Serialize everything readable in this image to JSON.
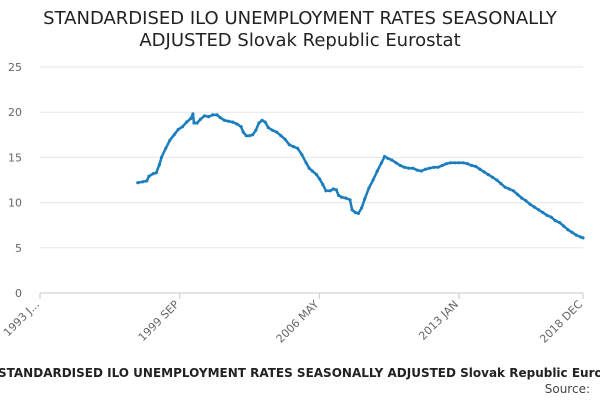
{
  "chart_data": {
    "type": "line",
    "title": "STANDARDISED ILO UNEMPLOYMENT RATES SEASONALLY ADJUSTED Slovak Republic Eurostat",
    "title_line1": "STANDARDISED ILO UNEMPLOYMENT RATES SEASONALLY",
    "title_line2": "ADJUSTED Slovak Republic Eurostat",
    "xlabel": "",
    "ylabel": "",
    "ylim": [
      0,
      25
    ],
    "yticks": [
      0,
      5,
      10,
      15,
      20,
      25
    ],
    "xlim": [
      1993.0,
      2018.92
    ],
    "xtick_values": [
      1993.0,
      1999.67,
      2006.33,
      2013.0,
      2018.92
    ],
    "xtick_labels": [
      "1993 J...",
      "1999 SEP",
      "2006 MAY",
      "2013 JAN",
      "2018 DEC"
    ],
    "grid": true,
    "legend": "none",
    "series": [
      {
        "name": "Slovak Republic",
        "color": "#1a7dbf",
        "points": [
          [
            1997.67,
            12.2
          ],
          [
            1997.9,
            12.3
          ],
          [
            1998.1,
            12.4
          ],
          [
            1998.2,
            12.9
          ],
          [
            1998.4,
            13.2
          ],
          [
            1998.55,
            13.3
          ],
          [
            1998.7,
            14.2
          ],
          [
            1998.8,
            15.0
          ],
          [
            1999.0,
            16.0
          ],
          [
            1999.2,
            16.9
          ],
          [
            1999.4,
            17.5
          ],
          [
            1999.6,
            18.1
          ],
          [
            1999.8,
            18.4
          ],
          [
            2000.0,
            18.9
          ],
          [
            2000.2,
            19.3
          ],
          [
            2000.3,
            19.8
          ],
          [
            2000.35,
            18.8
          ],
          [
            2000.5,
            18.8
          ],
          [
            2000.65,
            19.2
          ],
          [
            2000.85,
            19.6
          ],
          [
            2001.05,
            19.5
          ],
          [
            2001.25,
            19.7
          ],
          [
            2001.45,
            19.7
          ],
          [
            2001.6,
            19.4
          ],
          [
            2001.8,
            19.1
          ],
          [
            2002.0,
            19.0
          ],
          [
            2002.2,
            18.9
          ],
          [
            2002.4,
            18.7
          ],
          [
            2002.6,
            18.4
          ],
          [
            2002.7,
            17.8
          ],
          [
            2002.85,
            17.4
          ],
          [
            2003.0,
            17.4
          ],
          [
            2003.15,
            17.5
          ],
          [
            2003.3,
            18.0
          ],
          [
            2003.45,
            18.8
          ],
          [
            2003.6,
            19.1
          ],
          [
            2003.75,
            18.9
          ],
          [
            2003.9,
            18.3
          ],
          [
            2004.1,
            18.0
          ],
          [
            2004.3,
            17.8
          ],
          [
            2004.5,
            17.4
          ],
          [
            2004.7,
            17.0
          ],
          [
            2004.9,
            16.4
          ],
          [
            2005.1,
            16.2
          ],
          [
            2005.3,
            16.0
          ],
          [
            2005.5,
            15.3
          ],
          [
            2005.7,
            14.4
          ],
          [
            2005.85,
            13.8
          ],
          [
            2006.0,
            13.5
          ],
          [
            2006.2,
            13.1
          ],
          [
            2006.35,
            12.6
          ],
          [
            2006.5,
            12.0
          ],
          [
            2006.65,
            11.3
          ],
          [
            2006.85,
            11.3
          ],
          [
            2007.0,
            11.5
          ],
          [
            2007.15,
            11.4
          ],
          [
            2007.25,
            10.8
          ],
          [
            2007.4,
            10.6
          ],
          [
            2007.6,
            10.5
          ],
          [
            2007.8,
            10.3
          ],
          [
            2007.9,
            9.2
          ],
          [
            2008.05,
            8.9
          ],
          [
            2008.2,
            8.8
          ],
          [
            2008.35,
            9.4
          ],
          [
            2008.5,
            10.4
          ],
          [
            2008.7,
            11.6
          ],
          [
            2008.9,
            12.5
          ],
          [
            2009.1,
            13.5
          ],
          [
            2009.3,
            14.4
          ],
          [
            2009.45,
            15.1
          ],
          [
            2009.6,
            14.9
          ],
          [
            2009.8,
            14.7
          ],
          [
            2010.0,
            14.4
          ],
          [
            2010.2,
            14.1
          ],
          [
            2010.4,
            13.9
          ],
          [
            2010.6,
            13.8
          ],
          [
            2010.8,
            13.8
          ],
          [
            2011.0,
            13.6
          ],
          [
            2011.2,
            13.5
          ],
          [
            2011.4,
            13.7
          ],
          [
            2011.6,
            13.8
          ],
          [
            2011.8,
            13.9
          ],
          [
            2012.0,
            13.9
          ],
          [
            2012.2,
            14.1
          ],
          [
            2012.4,
            14.3
          ],
          [
            2012.6,
            14.4
          ],
          [
            2012.8,
            14.4
          ],
          [
            2013.0,
            14.4
          ],
          [
            2013.2,
            14.4
          ],
          [
            2013.4,
            14.3
          ],
          [
            2013.6,
            14.1
          ],
          [
            2013.8,
            14.0
          ],
          [
            2014.0,
            13.7
          ],
          [
            2014.2,
            13.4
          ],
          [
            2014.4,
            13.1
          ],
          [
            2014.6,
            12.8
          ],
          [
            2014.8,
            12.5
          ],
          [
            2015.0,
            12.1
          ],
          [
            2015.2,
            11.7
          ],
          [
            2015.4,
            11.5
          ],
          [
            2015.6,
            11.3
          ],
          [
            2015.8,
            10.9
          ],
          [
            2016.0,
            10.5
          ],
          [
            2016.2,
            10.2
          ],
          [
            2016.4,
            9.8
          ],
          [
            2016.6,
            9.5
          ],
          [
            2016.8,
            9.2
          ],
          [
            2017.0,
            8.9
          ],
          [
            2017.2,
            8.6
          ],
          [
            2017.4,
            8.4
          ],
          [
            2017.6,
            8.0
          ],
          [
            2017.8,
            7.8
          ],
          [
            2018.0,
            7.4
          ],
          [
            2018.2,
            7.0
          ],
          [
            2018.4,
            6.7
          ],
          [
            2018.6,
            6.4
          ],
          [
            2018.8,
            6.2
          ],
          [
            2018.92,
            6.1
          ]
        ]
      }
    ]
  },
  "footer": {
    "chart_title": "STANDARDISED ILO UNEMPLOYMENT RATES SEASONALLY ADJUSTED Slovak Republic Eurostat",
    "source_label": "Source:"
  }
}
